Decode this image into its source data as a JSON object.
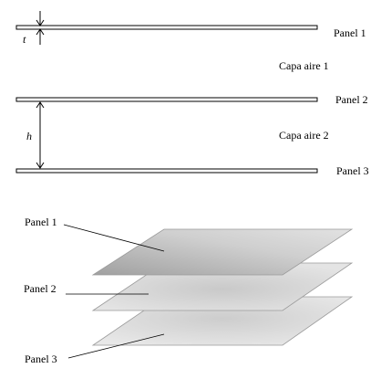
{
  "section_view": {
    "panels": [
      {
        "label": "Panel 1"
      },
      {
        "label": "Panel 2"
      },
      {
        "label": "Panel 3"
      }
    ],
    "air_layers": [
      {
        "label": "Capa aire 1"
      },
      {
        "label": "Capa aire 2"
      }
    ],
    "thickness_symbol": "t",
    "gap_symbol": "h"
  },
  "perspective_view": {
    "callouts": [
      {
        "label": "Panel 1"
      },
      {
        "label": "Panel 2"
      },
      {
        "label": "Panel 3"
      }
    ]
  },
  "colors": {
    "stroke": "#000000",
    "panel_fill_light": "#e6e6e6",
    "panel_fill_mid": "#cfcfcf",
    "panel_fill_dark": "#a9a9a9",
    "panel_edge": "#9a9a9a"
  }
}
